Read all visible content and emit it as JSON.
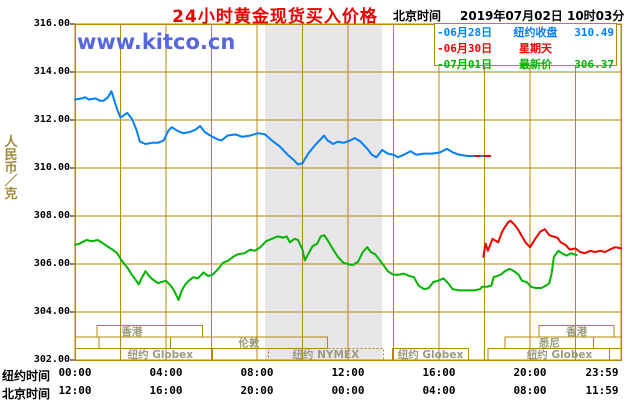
{
  "header": {
    "title": "24小时黄金现货买入价格",
    "timezone_label": "北京时间",
    "datetime": "2019年07月02日 10时03分"
  },
  "watermark": "www.kitco.cn",
  "legend": {
    "rows": [
      {
        "date": "-06月28日",
        "label": "纽约收盘",
        "value": "310.49",
        "color": "#0080ff"
      },
      {
        "date": "-06月30日",
        "label": "星期天",
        "value": "",
        "color": "#ee0000"
      },
      {
        "date": "-07月01日",
        "label": "最新价",
        "value": "306.37",
        "color": "#00b400"
      }
    ]
  },
  "colors": {
    "grid": "#b8860b",
    "band": "#e9e6ea",
    "title": "#e80000",
    "watermark": "#5767df",
    "unit_text": "#a08a3a",
    "session_text": "#9b9b7d",
    "blue_line": "#0080ff",
    "red_line": "#ee0000",
    "green_line": "#00b400"
  },
  "y_axis": {
    "unit": "人民币／克",
    "ticks": [
      {
        "label": "316.00",
        "value": 316
      },
      {
        "label": "314.00",
        "value": 314
      },
      {
        "label": "312.00",
        "value": 312
      },
      {
        "label": "310.00",
        "value": 310
      },
      {
        "label": "308.00",
        "value": 308
      },
      {
        "label": "306.00",
        "value": 306
      },
      {
        "label": "304.00",
        "value": 304
      },
      {
        "label": "302.00",
        "value": 302
      }
    ]
  },
  "x_axis": {
    "ny_label": "纽约时间",
    "bj_label": "北京时间",
    "ticks": [
      {
        "hour": 0,
        "ny": "00:00",
        "bj": "12:00"
      },
      {
        "hour": 4,
        "ny": "04:00",
        "bj": "16:00"
      },
      {
        "hour": 8,
        "ny": "08:00",
        "bj": "20:00"
      },
      {
        "hour": 12,
        "ny": "12:00",
        "bj": "00:00"
      },
      {
        "hour": 16,
        "ny": "16:00",
        "bj": "04:00"
      },
      {
        "hour": 20,
        "ny": "20:00",
        "bj": "08:00"
      },
      {
        "hour": 23.983,
        "ny": "23:59",
        "bj": "11:59"
      }
    ]
  },
  "sessions": {
    "rows": [
      {
        "boxes": [
          {
            "from": 0.97,
            "to": 5.6,
            "label": "香港",
            "label_at": 2.5
          },
          {
            "from": 20.4,
            "to": 23.7,
            "label": "香港"
          }
        ]
      },
      {
        "boxes": [
          {
            "from": 0,
            "to": 1.05,
            "label": ""
          },
          {
            "from": 4.2,
            "to": 11.1,
            "label": "伦敦"
          },
          {
            "from": 18.9,
            "to": 22.8,
            "label": "悉尼"
          },
          {
            "from": 22.8,
            "to": 24,
            "label": ""
          }
        ]
      },
      {
        "boxes": [
          {
            "from": 0,
            "to": 6.05,
            "label": "纽约 Globex",
            "label_at": 3.75
          },
          {
            "from": 8.5,
            "to": 13.55,
            "label": "纽约 NYMEX",
            "dashed": true
          },
          {
            "from": 13.95,
            "to": 17.3,
            "label": "纽约 Globex"
          },
          {
            "from": 18.15,
            "to": 23.5,
            "label": "纽约 Globex",
            "label_at": 21.3
          }
        ]
      }
    ]
  },
  "chart_data": {
    "type": "line",
    "title": "24小时黄金现货买入价格",
    "xlabel": "纽约时间 / 北京时间",
    "ylabel": "人民币／克",
    "xlim_hours": [
      0,
      24
    ],
    "ylim": [
      302,
      316
    ],
    "grid": {
      "x_step_hours": 2,
      "y_step": 2,
      "on": true
    },
    "shaded_band_hours": [
      8.35,
      13.5
    ],
    "series": [
      {
        "name": "06月28日 纽约收盘",
        "color": "#0080ff",
        "points": [
          [
            0,
            312.85
          ],
          [
            0.3,
            312.9
          ],
          [
            0.45,
            312.95
          ],
          [
            0.6,
            312.85
          ],
          [
            0.9,
            312.9
          ],
          [
            1.1,
            312.8
          ],
          [
            1.25,
            312.8
          ],
          [
            1.45,
            312.95
          ],
          [
            1.6,
            313.2
          ],
          [
            1.7,
            312.9
          ],
          [
            1.85,
            312.45
          ],
          [
            2.0,
            312.1
          ],
          [
            2.15,
            312.2
          ],
          [
            2.3,
            312.3
          ],
          [
            2.5,
            312.05
          ],
          [
            2.7,
            311.6
          ],
          [
            2.85,
            311.1
          ],
          [
            3.1,
            311.0
          ],
          [
            3.4,
            311.05
          ],
          [
            3.65,
            311.05
          ],
          [
            3.9,
            311.15
          ],
          [
            4.1,
            311.55
          ],
          [
            4.25,
            311.7
          ],
          [
            4.5,
            311.55
          ],
          [
            4.75,
            311.45
          ],
          [
            5.05,
            311.5
          ],
          [
            5.3,
            311.6
          ],
          [
            5.5,
            311.75
          ],
          [
            5.7,
            311.5
          ],
          [
            5.95,
            311.35
          ],
          [
            6.25,
            311.2
          ],
          [
            6.45,
            311.15
          ],
          [
            6.7,
            311.35
          ],
          [
            7.05,
            311.4
          ],
          [
            7.35,
            311.3
          ],
          [
            7.7,
            311.35
          ],
          [
            8.05,
            311.45
          ],
          [
            8.35,
            311.4
          ],
          [
            8.65,
            311.15
          ],
          [
            9.0,
            310.9
          ],
          [
            9.35,
            310.55
          ],
          [
            9.65,
            310.3
          ],
          [
            9.8,
            310.15
          ],
          [
            10.0,
            310.2
          ],
          [
            10.25,
            310.6
          ],
          [
            10.55,
            310.95
          ],
          [
            10.8,
            311.2
          ],
          [
            10.95,
            311.35
          ],
          [
            11.1,
            311.15
          ],
          [
            11.35,
            311.0
          ],
          [
            11.55,
            311.1
          ],
          [
            11.8,
            311.05
          ],
          [
            12.1,
            311.15
          ],
          [
            12.3,
            311.25
          ],
          [
            12.55,
            311.1
          ],
          [
            12.85,
            310.8
          ],
          [
            13.05,
            310.55
          ],
          [
            13.25,
            310.45
          ],
          [
            13.5,
            310.75
          ],
          [
            13.75,
            310.6
          ],
          [
            14.0,
            310.55
          ],
          [
            14.2,
            310.45
          ],
          [
            14.45,
            310.55
          ],
          [
            14.75,
            310.7
          ],
          [
            15.0,
            310.55
          ],
          [
            15.35,
            310.6
          ],
          [
            15.7,
            310.6
          ],
          [
            16.05,
            310.65
          ],
          [
            16.35,
            310.8
          ],
          [
            16.6,
            310.65
          ],
          [
            16.9,
            310.55
          ],
          [
            17.25,
            310.5
          ],
          [
            17.6,
            310.5
          ]
        ]
      },
      {
        "name": "纽约收盘延伸",
        "color": "#ee0000",
        "points": [
          [
            17.6,
            310.5
          ],
          [
            18.25,
            310.5
          ]
        ]
      },
      {
        "name": "收盘延伸蓝点",
        "color": "#0080ff",
        "points": [
          [
            17.85,
            310.5
          ],
          [
            17.95,
            310.5
          ]
        ]
      },
      {
        "name": "06月30日 星期天",
        "color": "#ee0000",
        "points": [
          [
            17.95,
            306.3
          ],
          [
            18.05,
            306.85
          ],
          [
            18.15,
            306.55
          ],
          [
            18.35,
            307.05
          ],
          [
            18.6,
            306.9
          ],
          [
            18.75,
            307.3
          ],
          [
            18.9,
            307.55
          ],
          [
            19.05,
            307.75
          ],
          [
            19.15,
            307.8
          ],
          [
            19.35,
            307.6
          ],
          [
            19.5,
            307.4
          ],
          [
            19.65,
            307.15
          ],
          [
            19.8,
            306.9
          ],
          [
            20.0,
            306.7
          ],
          [
            20.2,
            307.0
          ],
          [
            20.45,
            307.35
          ],
          [
            20.65,
            307.45
          ],
          [
            20.85,
            307.2
          ],
          [
            21.0,
            307.15
          ],
          [
            21.2,
            307.1
          ],
          [
            21.35,
            306.9
          ],
          [
            21.55,
            306.8
          ],
          [
            21.75,
            306.6
          ],
          [
            22.0,
            306.65
          ],
          [
            22.2,
            306.5
          ],
          [
            22.4,
            306.45
          ],
          [
            22.65,
            306.55
          ],
          [
            22.85,
            306.5
          ],
          [
            23.1,
            306.55
          ],
          [
            23.3,
            306.5
          ],
          [
            23.5,
            306.6
          ],
          [
            23.75,
            306.7
          ],
          [
            24,
            306.65
          ]
        ]
      },
      {
        "name": "07月01日 最新价",
        "color": "#00b400",
        "points": [
          [
            0,
            306.8
          ],
          [
            0.2,
            306.85
          ],
          [
            0.5,
            307.0
          ],
          [
            0.75,
            306.95
          ],
          [
            1.0,
            307.0
          ],
          [
            1.25,
            306.85
          ],
          [
            1.4,
            306.75
          ],
          [
            1.65,
            306.6
          ],
          [
            1.85,
            306.45
          ],
          [
            2.05,
            306.15
          ],
          [
            2.3,
            305.85
          ],
          [
            2.5,
            305.55
          ],
          [
            2.7,
            305.3
          ],
          [
            2.8,
            305.15
          ],
          [
            2.95,
            305.45
          ],
          [
            3.1,
            305.7
          ],
          [
            3.3,
            305.45
          ],
          [
            3.5,
            305.3
          ],
          [
            3.65,
            305.2
          ],
          [
            3.8,
            305.25
          ],
          [
            4.0,
            305.3
          ],
          [
            4.2,
            305.1
          ],
          [
            4.35,
            304.9
          ],
          [
            4.5,
            304.6
          ],
          [
            4.55,
            304.5
          ],
          [
            4.7,
            304.9
          ],
          [
            4.85,
            305.15
          ],
          [
            5.0,
            305.3
          ],
          [
            5.2,
            305.45
          ],
          [
            5.4,
            305.4
          ],
          [
            5.65,
            305.65
          ],
          [
            5.85,
            305.5
          ],
          [
            6.05,
            305.55
          ],
          [
            6.3,
            305.8
          ],
          [
            6.5,
            306.05
          ],
          [
            6.75,
            306.15
          ],
          [
            6.95,
            306.3
          ],
          [
            7.15,
            306.4
          ],
          [
            7.45,
            306.45
          ],
          [
            7.7,
            306.6
          ],
          [
            7.9,
            306.55
          ],
          [
            8.15,
            306.7
          ],
          [
            8.4,
            306.95
          ],
          [
            8.65,
            307.05
          ],
          [
            8.9,
            307.15
          ],
          [
            9.15,
            307.1
          ],
          [
            9.3,
            307.15
          ],
          [
            9.45,
            306.9
          ],
          [
            9.65,
            307.05
          ],
          [
            9.8,
            307.0
          ],
          [
            10.0,
            306.6
          ],
          [
            10.1,
            306.15
          ],
          [
            10.3,
            306.5
          ],
          [
            10.45,
            306.75
          ],
          [
            10.65,
            306.85
          ],
          [
            10.8,
            307.15
          ],
          [
            10.95,
            307.2
          ],
          [
            11.1,
            307.0
          ],
          [
            11.35,
            306.6
          ],
          [
            11.55,
            306.3
          ],
          [
            11.8,
            306.05
          ],
          [
            12.0,
            306.0
          ],
          [
            12.2,
            305.95
          ],
          [
            12.45,
            306.1
          ],
          [
            12.65,
            306.5
          ],
          [
            12.85,
            306.7
          ],
          [
            13.0,
            306.5
          ],
          [
            13.2,
            306.4
          ],
          [
            13.4,
            306.15
          ],
          [
            13.6,
            305.9
          ],
          [
            13.75,
            305.7
          ],
          [
            14.0,
            305.55
          ],
          [
            14.2,
            305.55
          ],
          [
            14.45,
            305.6
          ],
          [
            14.7,
            305.5
          ],
          [
            14.9,
            305.45
          ],
          [
            15.1,
            305.1
          ],
          [
            15.35,
            304.95
          ],
          [
            15.55,
            305.0
          ],
          [
            15.75,
            305.25
          ],
          [
            15.95,
            305.3
          ],
          [
            16.2,
            305.4
          ],
          [
            16.4,
            305.2
          ],
          [
            16.6,
            304.95
          ],
          [
            16.9,
            304.9
          ],
          [
            17.25,
            304.9
          ],
          [
            17.55,
            304.9
          ],
          [
            17.8,
            304.95
          ],
          [
            17.9,
            305.05
          ],
          [
            18.1,
            305.05
          ],
          [
            18.3,
            305.1
          ],
          [
            18.4,
            305.45
          ],
          [
            18.7,
            305.55
          ],
          [
            18.9,
            305.7
          ],
          [
            19.1,
            305.8
          ],
          [
            19.3,
            305.7
          ],
          [
            19.5,
            305.55
          ],
          [
            19.65,
            305.3
          ],
          [
            19.85,
            305.25
          ],
          [
            20.05,
            305.05
          ],
          [
            20.25,
            305.0
          ],
          [
            20.5,
            305.0
          ],
          [
            20.7,
            305.1
          ],
          [
            20.85,
            305.2
          ],
          [
            20.95,
            305.6
          ],
          [
            21.05,
            306.3
          ],
          [
            21.25,
            306.55
          ],
          [
            21.4,
            306.45
          ],
          [
            21.6,
            306.35
          ],
          [
            21.8,
            306.45
          ],
          [
            21.95,
            306.4
          ],
          [
            22.05,
            306.37
          ]
        ]
      }
    ]
  }
}
